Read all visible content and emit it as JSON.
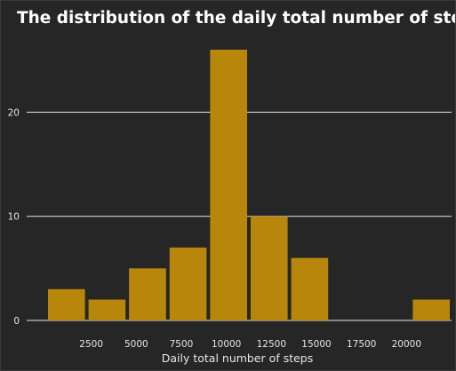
{
  "chart_data": {
    "type": "bar",
    "title": "The distribution of the daily total number of steps",
    "xlabel": "Daily total number of steps",
    "ylabel": "",
    "bar_color": "#b8860b",
    "background_color": "#262626",
    "grid_color": "#e6e6e6",
    "text_color": "#ffffff",
    "grid": "horizontal",
    "xlim": [
      0,
      22500
    ],
    "ylim": [
      0,
      26
    ],
    "bin_width": 2250,
    "bins": [
      {
        "start": 0,
        "end": 2250,
        "count": 3
      },
      {
        "start": 2250,
        "end": 4500,
        "count": 2
      },
      {
        "start": 4500,
        "end": 6750,
        "count": 5
      },
      {
        "start": 6750,
        "end": 9000,
        "count": 7
      },
      {
        "start": 9000,
        "end": 11250,
        "count": 26
      },
      {
        "start": 11250,
        "end": 13500,
        "count": 10
      },
      {
        "start": 13500,
        "end": 15750,
        "count": 6
      },
      {
        "start": 15750,
        "end": 18000,
        "count": 0
      },
      {
        "start": 18000,
        "end": 20250,
        "count": 0
      },
      {
        "start": 20250,
        "end": 22500,
        "count": 2
      }
    ],
    "x_ticks": [
      2500,
      5000,
      7500,
      10000,
      12500,
      15000,
      17500,
      20000
    ],
    "x_tick_labels": [
      "2500",
      "5000",
      "7500",
      "10000",
      "12500",
      "15000",
      "17500",
      "20000"
    ],
    "y_ticks": [
      0,
      10,
      20
    ],
    "y_tick_labels": [
      "0",
      "10",
      "20"
    ]
  }
}
